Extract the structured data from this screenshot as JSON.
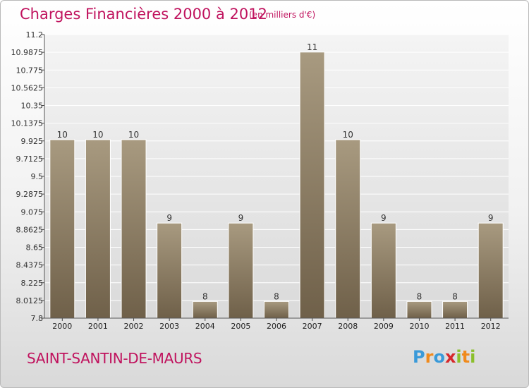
{
  "header": {
    "title": "Charges Financières 2000 à 2012",
    "subtitle": "(en milliers d'€)"
  },
  "footer": {
    "commune": "SAINT-SANTIN-DE-MAURS",
    "logo_letters": [
      "P",
      "r",
      "o",
      "x",
      "i",
      "t",
      "i"
    ],
    "logo_colors": [
      "#3a9ad9",
      "#f08a1c",
      "#3a9ad9",
      "#d6282b",
      "#8bbf2b",
      "#f08a1c",
      "#8bbf2b"
    ]
  },
  "colors": {
    "bar_light": "#a89a80",
    "bar_dark": "#786850",
    "accent": "#c0135e"
  },
  "chart_data": {
    "type": "bar",
    "title": "Charges Financières 2000 à 2012",
    "subtitle": "(en milliers d'€)",
    "categories": [
      "2000",
      "2001",
      "2002",
      "2003",
      "2004",
      "2005",
      "2006",
      "2007",
      "2008",
      "2009",
      "2010",
      "2011",
      "2012"
    ],
    "values": [
      10,
      10,
      10,
      9,
      8,
      9,
      8,
      11,
      10,
      9,
      8,
      8,
      9
    ],
    "data_labels": [
      "10",
      "10",
      "10",
      "9",
      "8",
      "9",
      "8",
      "11",
      "10",
      "9",
      "8",
      "8",
      "9"
    ],
    "bar_heights": [
      9.94,
      9.94,
      9.94,
      8.94,
      8.0,
      8.94,
      8.0,
      10.99,
      9.94,
      8.94,
      8.0,
      8.0,
      8.94
    ],
    "ylim": [
      7.8,
      11.2
    ],
    "yticks": [
      "7.8",
      "8.0125",
      "8.225",
      "8.4375",
      "8.65",
      "8.8625",
      "9.075",
      "9.2875",
      "9.5",
      "9.7125",
      "9.925",
      "10.1375",
      "10.35",
      "10.5625",
      "10.775",
      "10.9875",
      "11.2"
    ],
    "grid": true
  }
}
